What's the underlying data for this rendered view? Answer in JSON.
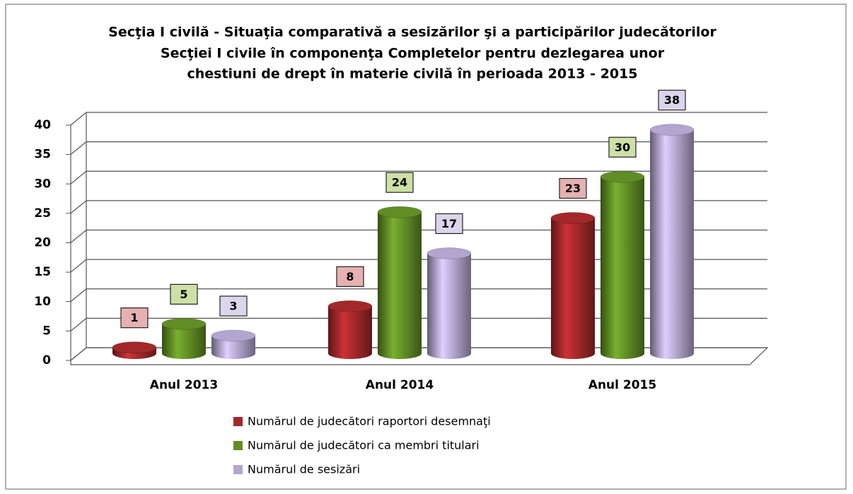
{
  "chart_data": {
    "type": "bar3d",
    "title": [
      "Secţia I civilă - Situaţia comparativă a sesizărilor şi a participărilor judecătorilor",
      "Secţiei I civile în componenţa Completelor pentru dezlegarea unor",
      "chestiuni de drept în materie civilă în perioada 2013 - 2015"
    ],
    "categories": [
      "Anul 2013",
      "Anul 2014",
      "Anul 2015"
    ],
    "series": [
      {
        "name": "Numărul de judecători raportori desemnaţi",
        "color": "#a3282a",
        "label_color": "#e6b1b1",
        "values": [
          1,
          8,
          23
        ]
      },
      {
        "name": "Numărul de judecători ca membri titulari",
        "color": "#618d25",
        "label_color": "#cde0a6",
        "values": [
          5,
          24,
          30
        ]
      },
      {
        "name": "Numărul de sesizări",
        "color": "#b2a5d0",
        "label_color": "#dcd5ec",
        "values": [
          3,
          17,
          38
        ]
      }
    ],
    "ylim": [
      0,
      40
    ],
    "yticks": [
      0,
      5,
      10,
      15,
      20,
      25,
      30,
      35,
      40
    ],
    "grid": true,
    "legend": "bottom"
  }
}
